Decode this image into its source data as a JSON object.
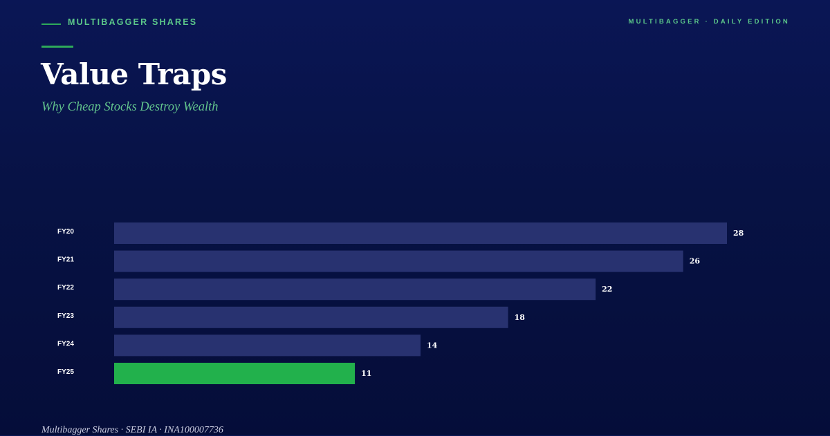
{
  "header": {
    "brand": "MULTIBAGGER SHARES",
    "edition": "MULTIBAGGER · DAILY EDITION",
    "title": "Value Traps",
    "subtitle": "Why Cheap Stocks Destroy Wealth"
  },
  "footer": {
    "text": "Multibagger Shares · SEBI IA · INA100007736"
  },
  "colors": {
    "background": "#071244",
    "bar": "#283270",
    "highlight_bar": "#22b14c",
    "accent_text": "#5cc88a"
  },
  "chart_data": {
    "type": "bar",
    "orientation": "horizontal",
    "categories": [
      "FY20",
      "FY21",
      "FY22",
      "FY23",
      "FY24",
      "FY25"
    ],
    "values": [
      28,
      26,
      22,
      18,
      14,
      11
    ],
    "highlight_index": 5,
    "xlim": [
      0,
      28
    ],
    "grid": false,
    "legend": "none"
  }
}
